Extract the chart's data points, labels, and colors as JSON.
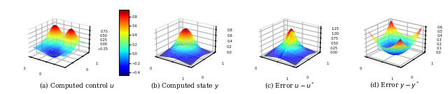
{
  "figsize": [
    6.4,
    1.35
  ],
  "dpi": 100,
  "captions": [
    "(a) Computed control $u$",
    "(b) Computed state $y$",
    "(c) Error $u - u^*$",
    "(d) Error $y - y^*$"
  ],
  "caption_fontsize": 6.5,
  "background_color": "#ffffff",
  "elev": 22,
  "azim": -55,
  "n_grid": 50,
  "domain_a": [
    -1,
    1
  ],
  "domain_bcd": [
    0,
    1
  ],
  "colormap": "jet"
}
